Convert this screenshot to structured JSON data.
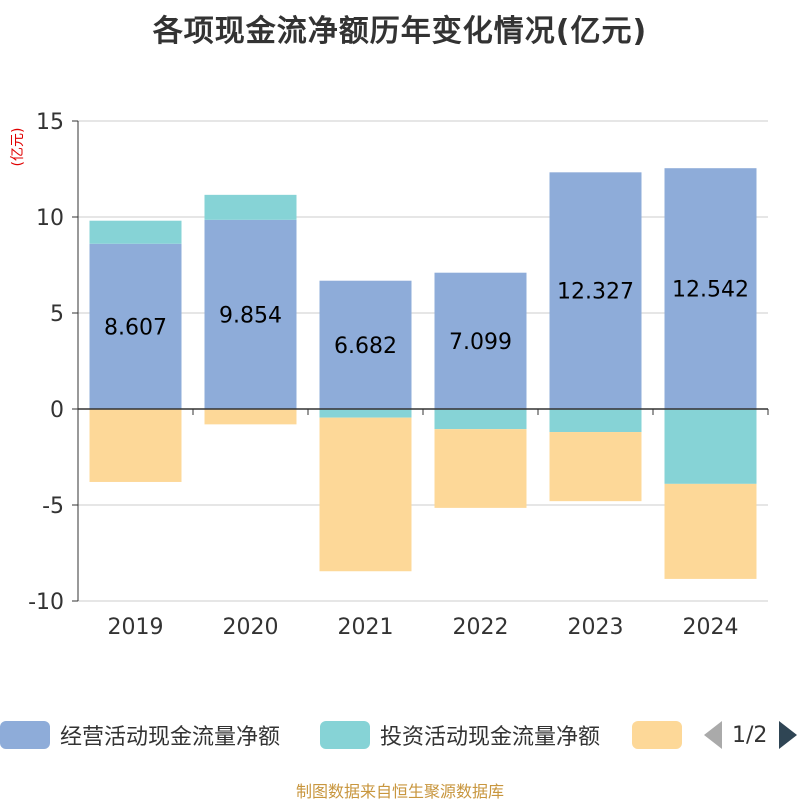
{
  "chart_data": {
    "type": "bar",
    "stacked": true,
    "title": "各项现金流净额历年变化情况(亿元)",
    "ylabel": "(亿元)",
    "categories": [
      "2019",
      "2020",
      "2021",
      "2022",
      "2023",
      "2024"
    ],
    "ylim": [
      -10,
      15
    ],
    "yticks": [
      15,
      10,
      5,
      0,
      -5,
      -10
    ],
    "series": [
      {
        "name": "经营活动现金流量净额",
        "color": "#8eacd9",
        "values": [
          8.607,
          9.854,
          6.682,
          7.099,
          12.327,
          12.542
        ],
        "show_labels": true
      },
      {
        "name": "投资活动现金流量净额",
        "color": "#86d3d6",
        "values": [
          1.2,
          1.3,
          -0.45,
          -1.05,
          -1.2,
          -3.9
        ],
        "show_labels": false
      },
      {
        "name": "",
        "color": "#fdd898",
        "values": [
          -3.8,
          -0.8,
          -8.0,
          -4.1,
          -3.6,
          -4.95
        ],
        "show_labels": false
      }
    ]
  },
  "legend": {
    "page": "1/2"
  },
  "source": "制图数据来自恒生聚源数据库"
}
